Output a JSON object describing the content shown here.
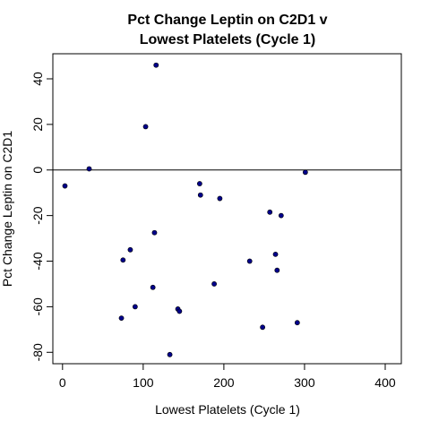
{
  "chart_data": {
    "type": "scatter",
    "title_lines": [
      "Pct Change Leptin on C2D1 v",
      "Lowest Platelets (Cycle 1)"
    ],
    "xlabel": "Lowest Platelets (Cycle 1)",
    "ylabel": "Pct Change Leptin on C2D1",
    "xlim": [
      -12,
      420
    ],
    "ylim": [
      -85,
      51
    ],
    "xticks": [
      0,
      100,
      200,
      300,
      400
    ],
    "yticks": [
      -80,
      -60,
      -40,
      -20,
      0,
      20,
      40
    ],
    "xtick_labels": [
      "0",
      "100",
      "200",
      "300",
      "400"
    ],
    "ytick_labels": [
      "-80",
      "-60",
      "-40",
      "-20",
      "0",
      "20",
      "40"
    ],
    "reference_line_y": 0,
    "point_color": "#00008b",
    "grid": false,
    "points": [
      {
        "x": 3,
        "y": -7
      },
      {
        "x": 33,
        "y": 0.5
      },
      {
        "x": 73,
        "y": -65
      },
      {
        "x": 75,
        "y": -39.5
      },
      {
        "x": 84,
        "y": -35
      },
      {
        "x": 90,
        "y": -60
      },
      {
        "x": 103,
        "y": 19
      },
      {
        "x": 112,
        "y": -51.5
      },
      {
        "x": 114,
        "y": -27.5
      },
      {
        "x": 116,
        "y": 46
      },
      {
        "x": 133,
        "y": -81
      },
      {
        "x": 143,
        "y": -61
      },
      {
        "x": 145,
        "y": -62
      },
      {
        "x": 170,
        "y": -6
      },
      {
        "x": 171,
        "y": -11
      },
      {
        "x": 188,
        "y": -50
      },
      {
        "x": 195,
        "y": -12.5
      },
      {
        "x": 232,
        "y": -40
      },
      {
        "x": 248,
        "y": -69
      },
      {
        "x": 257,
        "y": -18.5
      },
      {
        "x": 264,
        "y": -37
      },
      {
        "x": 266,
        "y": -44
      },
      {
        "x": 271,
        "y": -20
      },
      {
        "x": 291,
        "y": -67
      },
      {
        "x": 301,
        "y": -1
      }
    ]
  }
}
